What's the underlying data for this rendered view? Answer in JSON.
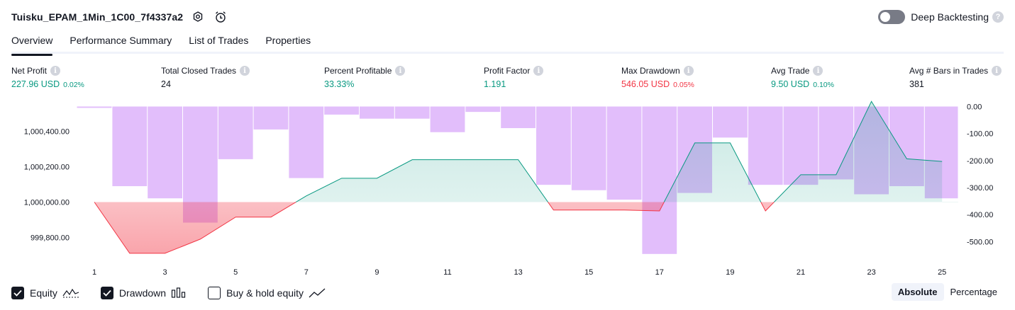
{
  "header": {
    "title": "Tuisku_EPAM_1Min_1C00_7f4337a2",
    "settings_icon": "gear-icon",
    "alert_icon": "alarm-clock-plus-icon",
    "deep_backtesting_label": "Deep Backtesting",
    "deep_backtesting_enabled": false,
    "help_icon": "question-icon",
    "help_glyph": "?"
  },
  "tabs": [
    {
      "label": "Overview",
      "active": true
    },
    {
      "label": "Performance Summary",
      "active": false
    },
    {
      "label": "List of Trades",
      "active": false
    },
    {
      "label": "Properties",
      "active": false
    }
  ],
  "metrics": [
    {
      "label": "Net Profit",
      "value": "227.96 USD",
      "sub": "0.02%",
      "color": "green"
    },
    {
      "label": "Total Closed Trades",
      "value": "24",
      "sub": "",
      "color": "dark"
    },
    {
      "label": "Percent Profitable",
      "value": "33.33%",
      "sub": "",
      "color": "green"
    },
    {
      "label": "Profit Factor",
      "value": "1.191",
      "sub": "",
      "color": "green"
    },
    {
      "label": "Max Drawdown",
      "value": "546.05 USD",
      "sub": "0.05%",
      "color": "red"
    },
    {
      "label": "Avg Trade",
      "value": "9.50 USD",
      "sub": "0.10%",
      "color": "green"
    },
    {
      "label": "Avg # Bars in Trades",
      "value": "381",
      "sub": "",
      "color": "dark"
    }
  ],
  "info_glyph": "i",
  "chart_data": {
    "type": "line+bar",
    "x": [
      1,
      2,
      3,
      4,
      5,
      6,
      7,
      8,
      9,
      10,
      11,
      12,
      13,
      14,
      15,
      16,
      17,
      18,
      19,
      20,
      21,
      22,
      23,
      24,
      25
    ],
    "x_ticks": [
      "1",
      "3",
      "5",
      "7",
      "9",
      "11",
      "13",
      "15",
      "17",
      "19",
      "21",
      "23",
      "25"
    ],
    "equity": {
      "name": "Equity",
      "values": [
        1000000,
        999710,
        999710,
        999790,
        999915,
        999915,
        1000035,
        1000135,
        1000135,
        1000240,
        1000240,
        1000240,
        1000240,
        999955,
        999955,
        999955,
        999950,
        1000335,
        1000335,
        999950,
        1000155,
        1000155,
        1000570,
        1000245,
        1000230
      ],
      "baseline": 1000000,
      "y_ticks": [
        "1,000,400.00",
        "1,000,200.00",
        "1,000,000.00",
        "999,800.00"
      ],
      "y_tick_values": [
        1000400,
        1000200,
        1000000,
        999800
      ],
      "positive_color": "#089981",
      "negative_color": "#f23645",
      "positive_fill": "#bfe9df",
      "negative_fill": "#f7a3ab"
    },
    "drawdown": {
      "name": "Drawdown",
      "values": [
        -5,
        -295,
        -340,
        -430,
        -195,
        -85,
        -265,
        -30,
        -45,
        -45,
        -95,
        -20,
        -80,
        -290,
        -310,
        -345,
        -546.05,
        -320,
        -115,
        -290,
        -290,
        -270,
        -325,
        -295,
        -340
      ],
      "y_ticks": [
        "0.00",
        "-100.00",
        "-200.00",
        "-300.00",
        "-400.00",
        "-500.00"
      ],
      "y_tick_values": [
        0,
        -100,
        -200,
        -300,
        -400,
        -500
      ],
      "ylim": [
        -546.05,
        0
      ],
      "bar_color": "#ce93f8"
    }
  },
  "legend": [
    {
      "label": "Equity",
      "checked": true,
      "glyph": "equity-line-icon"
    },
    {
      "label": "Drawdown",
      "checked": true,
      "glyph": "drawdown-bars-icon"
    },
    {
      "label": "Buy & hold equity",
      "checked": false,
      "glyph": "buy-hold-line-icon"
    }
  ],
  "modes": [
    {
      "label": "Absolute",
      "active": true
    },
    {
      "label": "Percentage",
      "active": false
    }
  ]
}
